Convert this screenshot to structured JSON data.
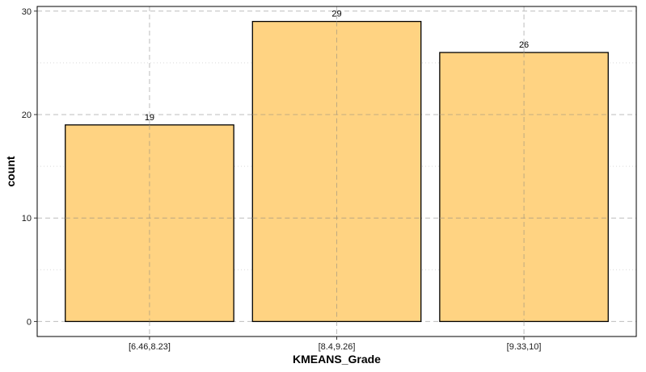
{
  "chart_data": {
    "type": "bar",
    "title": "",
    "xlabel": "KMEANS_Grade",
    "ylabel": "count",
    "categories": [
      "[6.46,8.23]",
      "[8.4,9.26]",
      "[9.33,10]"
    ],
    "values": [
      19,
      29,
      26
    ],
    "data_labels": [
      "19",
      "29",
      "26"
    ],
    "y_ticks": [
      0,
      10,
      20,
      30
    ],
    "ylim": [
      -1.45,
      30.45
    ],
    "grid": true,
    "legend": "none",
    "colors": {
      "bar_fill": "#ffd382",
      "bar_stroke": "#000000",
      "grid_major": "#bdbdbd",
      "grid_minor": "#d9d9d9"
    }
  }
}
